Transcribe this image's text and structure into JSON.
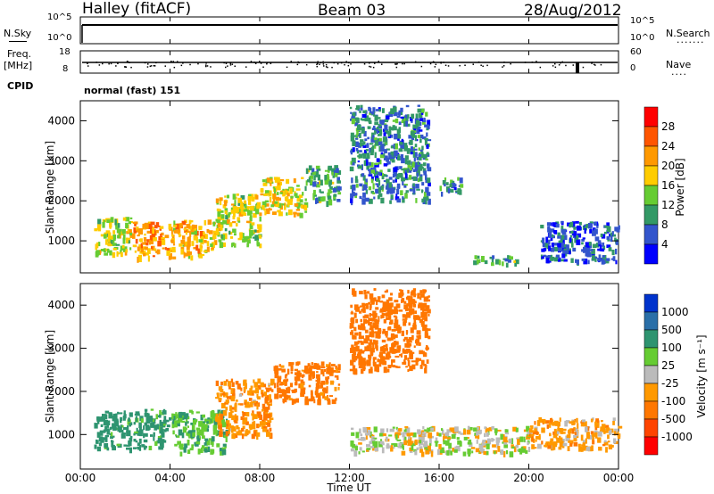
{
  "header": {
    "station": "Halley (fitACF)",
    "beam": "Beam 03",
    "date": "28/Aug/2012"
  },
  "panels": {
    "nsky_label": "N.Sky",
    "nsearch_label": "N.Search",
    "nsky_ticks": [
      "10^5",
      "10^0"
    ],
    "nsearch_ticks": [
      "10^5",
      "10^0"
    ],
    "freq_label_1": "Freq.",
    "freq_label_2": "[MHz]",
    "freq_ticks": [
      "18",
      "8"
    ],
    "nave_label": "Nave",
    "nave_ticks": [
      "60",
      "0"
    ],
    "cpid_label": "CPID",
    "cpid_value": "normal (fast) 151"
  },
  "colorbars": {
    "power": {
      "label": "Power [dB]",
      "ticks": [
        "28",
        "24",
        "20",
        "16",
        "12",
        "8",
        "4"
      ],
      "colors": [
        "#ff0000",
        "#ff5500",
        "#ff9900",
        "#ffcc00",
        "#66cc33",
        "#339966",
        "#3355cc",
        "#0000ff"
      ]
    },
    "velocity": {
      "label": "Velocity [m s⁻¹]",
      "ticks": [
        "1000",
        "500",
        "100",
        "25",
        "-25",
        "-100",
        "-500",
        "-1000"
      ],
      "colors": [
        "#0033cc",
        "#2a6fa8",
        "#2e9470",
        "#66cc33",
        "#bbbbbb",
        "#ff9900",
        "#ff7700",
        "#ff4400",
        "#ff0000"
      ]
    }
  },
  "chart_data": [
    {
      "type": "heatmap",
      "title": "Power",
      "xlabel": "",
      "ylabel": "Slant Range [km]",
      "xlim": [
        "00:00",
        "24:00"
      ],
      "ylim": [
        200,
        4500
      ],
      "yticks": [
        "1000",
        "2000",
        "3000",
        "4000"
      ],
      "value_label": "Power [dB]",
      "patches": [
        {
          "t": [
            0.6,
            2.3
          ],
          "r": [
            700,
            1600
          ],
          "v": 16
        },
        {
          "t": [
            2.3,
            4.0
          ],
          "r": [
            600,
            1500
          ],
          "v": 22
        },
        {
          "t": [
            4.0,
            6.0
          ],
          "r": [
            600,
            1550
          ],
          "v": 20
        },
        {
          "t": [
            6.0,
            8.0
          ],
          "r": [
            900,
            2200
          ],
          "v": 16
        },
        {
          "t": [
            8.0,
            10.0
          ],
          "r": [
            1700,
            2600
          ],
          "v": 18
        },
        {
          "t": [
            10.0,
            11.5
          ],
          "r": [
            2000,
            2900
          ],
          "v": 12
        },
        {
          "t": [
            12.0,
            15.5
          ],
          "r": [
            2000,
            4400
          ],
          "v": 8
        },
        {
          "t": [
            16.0,
            17.0
          ],
          "r": [
            2200,
            2600
          ],
          "v": 8
        },
        {
          "t": [
            17.5,
            19.5
          ],
          "r": [
            450,
            650
          ],
          "v": 12
        },
        {
          "t": [
            20.5,
            24.0
          ],
          "r": [
            500,
            1500
          ],
          "v": 6
        }
      ]
    },
    {
      "type": "heatmap",
      "title": "Velocity",
      "xlabel": "Time UT",
      "ylabel": "Slant Range [km]",
      "xlim": [
        "00:00",
        "24:00"
      ],
      "ylim": [
        200,
        4500
      ],
      "xticks": [
        "00:00",
        "04:00",
        "08:00",
        "12:00",
        "16:00",
        "20:00",
        "00:00"
      ],
      "yticks": [
        "1000",
        "2000",
        "3000",
        "4000"
      ],
      "value_label": "Velocity [m s⁻¹]",
      "patches": [
        {
          "t": [
            0.6,
            4.0
          ],
          "r": [
            700,
            1600
          ],
          "v": 150
        },
        {
          "t": [
            4.0,
            6.5
          ],
          "r": [
            600,
            1600
          ],
          "v": 90
        },
        {
          "t": [
            6.0,
            8.5
          ],
          "r": [
            1000,
            2300
          ],
          "v": -80
        },
        {
          "t": [
            8.5,
            11.5
          ],
          "r": [
            1800,
            2700
          ],
          "v": -150
        },
        {
          "t": [
            12.0,
            15.5
          ],
          "r": [
            2500,
            4400
          ],
          "v": -200
        },
        {
          "t": [
            12.0,
            20.0
          ],
          "r": [
            600,
            1200
          ],
          "v": 0
        },
        {
          "t": [
            20.0,
            24.0
          ],
          "r": [
            700,
            1400
          ],
          "v": -60
        }
      ]
    }
  ]
}
